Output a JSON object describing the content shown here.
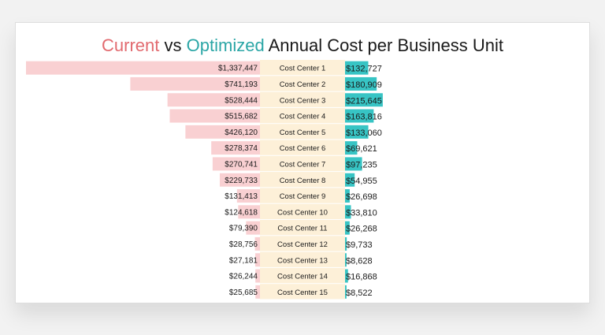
{
  "title": {
    "current_word": "Current",
    "vs_word": "vs",
    "optimized_word": "Optimized",
    "rest": "Annual Cost per Business Unit"
  },
  "colors": {
    "current_bar": "#f9d0d2",
    "current_title": "#e26a6f",
    "optimized_bar": "#37c4c4",
    "optimized_title": "#2ba6a6",
    "label_band": "#fdf0d8",
    "text": "#1a1a1a"
  },
  "chart_data": {
    "type": "bar",
    "orientation": "horizontal-diverging",
    "categories": [
      "Cost Center 1",
      "Cost Center 2",
      "Cost Center 3",
      "Cost Center 4",
      "Cost Center 5",
      "Cost Center 6",
      "Cost Center 7",
      "Cost Center 8",
      "Cost Center 9",
      "Cost Center 10",
      "Cost Center 11",
      "Cost Center 12",
      "Cost Center 13",
      "Cost Center 14",
      "Cost Center 15"
    ],
    "series": [
      {
        "name": "Current",
        "values": [
          1337447,
          741193,
          528444,
          515682,
          426120,
          278374,
          270741,
          229733,
          131413,
          124618,
          79390,
          28756,
          27181,
          26244,
          25685
        ],
        "labels": [
          "$1,337,447",
          "$741,193",
          "$528,444",
          "$515,682",
          "$426,120",
          "$278,374",
          "$270,741",
          "$229,733",
          "$131,413",
          "$124,618",
          "$79,390",
          "$28,756",
          "$27,181",
          "$26,244",
          "$25,685"
        ]
      },
      {
        "name": "Optimized",
        "values": [
          132727,
          180909,
          215645,
          163816,
          133060,
          69621,
          97235,
          54955,
          26698,
          33810,
          26268,
          9733,
          8628,
          16868,
          8522
        ],
        "labels": [
          "$132,727",
          "$180,909",
          "$215,645",
          "$163,816",
          "$133,060",
          "$69,621",
          "$97,235",
          "$54,955",
          "$26,698",
          "$33,810",
          "$26,268",
          "$9,733",
          "$8,628",
          "$16,868",
          "$8,522"
        ]
      }
    ]
  }
}
